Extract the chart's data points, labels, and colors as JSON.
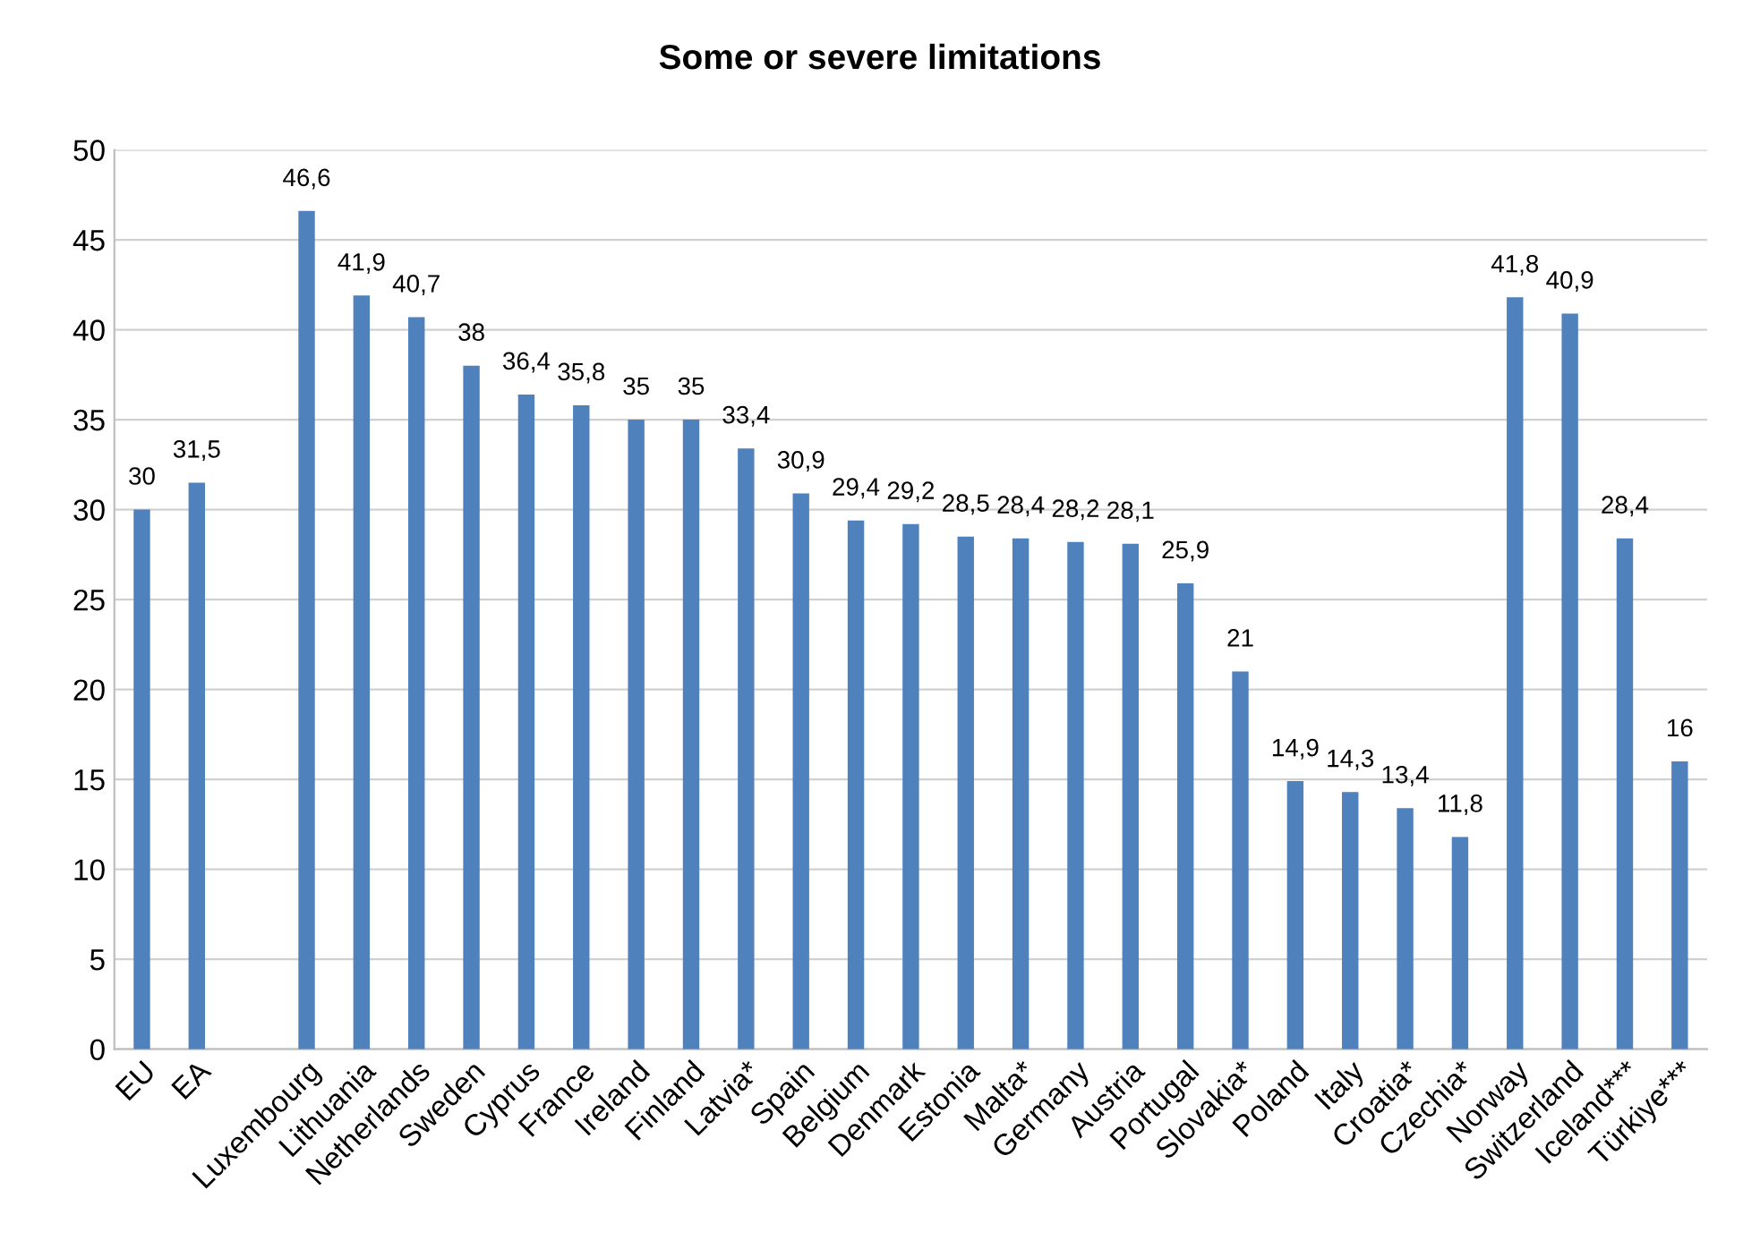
{
  "chart_data": {
    "type": "bar",
    "title": "Some or severe limitations",
    "categories": [
      "EU",
      "EA",
      null,
      "Luxembourg",
      "Lithuania",
      "Netherlands",
      "Sweden",
      "Cyprus",
      "France",
      "Ireland",
      "Finland",
      "Latvia*",
      "Spain",
      "Belgium",
      "Denmark",
      "Estonia",
      "Malta*",
      "Germany",
      "Austria",
      "Portugal",
      "Slovakia*",
      "Poland",
      "Italy",
      "Croatia*",
      "Czechia*",
      "Norway",
      "Switzerland",
      "Iceland***",
      "Türkiye***"
    ],
    "values": [
      30,
      31.5,
      null,
      46.6,
      41.9,
      40.7,
      38,
      36.4,
      35.8,
      35,
      35,
      33.4,
      30.9,
      29.4,
      29.2,
      28.5,
      28.4,
      28.2,
      28.1,
      25.9,
      21,
      14.9,
      14.3,
      13.4,
      11.8,
      41.8,
      40.9,
      28.4,
      16
    ],
    "color": "#4f81bd",
    "ylim": [
      0,
      50
    ],
    "yticks": [
      0,
      5,
      10,
      15,
      20,
      25,
      30,
      35,
      40,
      45,
      50
    ],
    "value_labels": [
      "30",
      "31,5",
      null,
      "46,6",
      "41,9",
      "40,7",
      "38",
      "36,4",
      "35,8",
      "35",
      "35",
      "33,4",
      "30,9",
      "29,4",
      "29,2",
      "28,5",
      "28,4",
      "28,2",
      "28,1",
      "25,9",
      "21",
      "14,9",
      "14,3",
      "13,4",
      "11,8",
      "41,8",
      "40,9",
      "28,4",
      "16"
    ],
    "grid": "y"
  }
}
